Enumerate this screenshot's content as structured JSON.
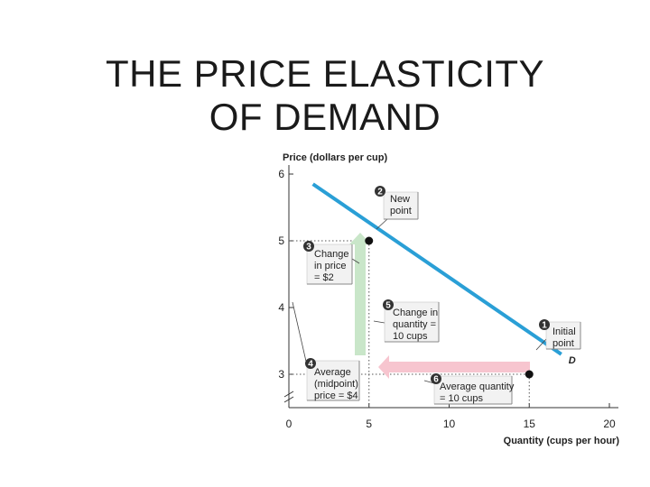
{
  "slide": {
    "title_line1": "THE PRICE ELASTICITY",
    "title_line2": "OF DEMAND"
  },
  "colors": {
    "demand_line": "#2a9fd6",
    "price_arrow": "#c9e6c9",
    "quantity_arrow": "#f7c5cf",
    "callout_fill": "#f2f2f2",
    "badge": "#333333"
  },
  "chart_data": {
    "type": "line",
    "ylabel": "Price (dollars per cup)",
    "xlabel": "Quantity (cups per hour)",
    "xlim": [
      0,
      20
    ],
    "ylim": [
      2.5,
      6
    ],
    "x_ticks": [
      "0",
      "5",
      "10",
      "15",
      "20"
    ],
    "y_ticks": [
      "3",
      "4",
      "5",
      "6"
    ],
    "series": [
      {
        "name": "D",
        "x": [
          1.5,
          17
        ],
        "y": [
          5.85,
          3.3
        ]
      }
    ],
    "points": [
      {
        "id": "new",
        "x": 5,
        "y": 5
      },
      {
        "id": "initial",
        "x": 15,
        "y": 3
      }
    ],
    "annotations": [
      {
        "badge": "2",
        "text": [
          "New",
          "point"
        ]
      },
      {
        "badge": "3",
        "text": [
          "Change",
          "in price",
          "= $2"
        ]
      },
      {
        "badge": "5",
        "text": [
          "Change in",
          "quantity =",
          "10 cups"
        ]
      },
      {
        "badge": "1",
        "text": [
          "Initial",
          "point"
        ]
      },
      {
        "badge": "4",
        "text": [
          "Average",
          "(midpoint)",
          "price = $4"
        ]
      },
      {
        "badge": "6",
        "text": [
          "Average quantity",
          "= 10 cups"
        ]
      }
    ]
  }
}
